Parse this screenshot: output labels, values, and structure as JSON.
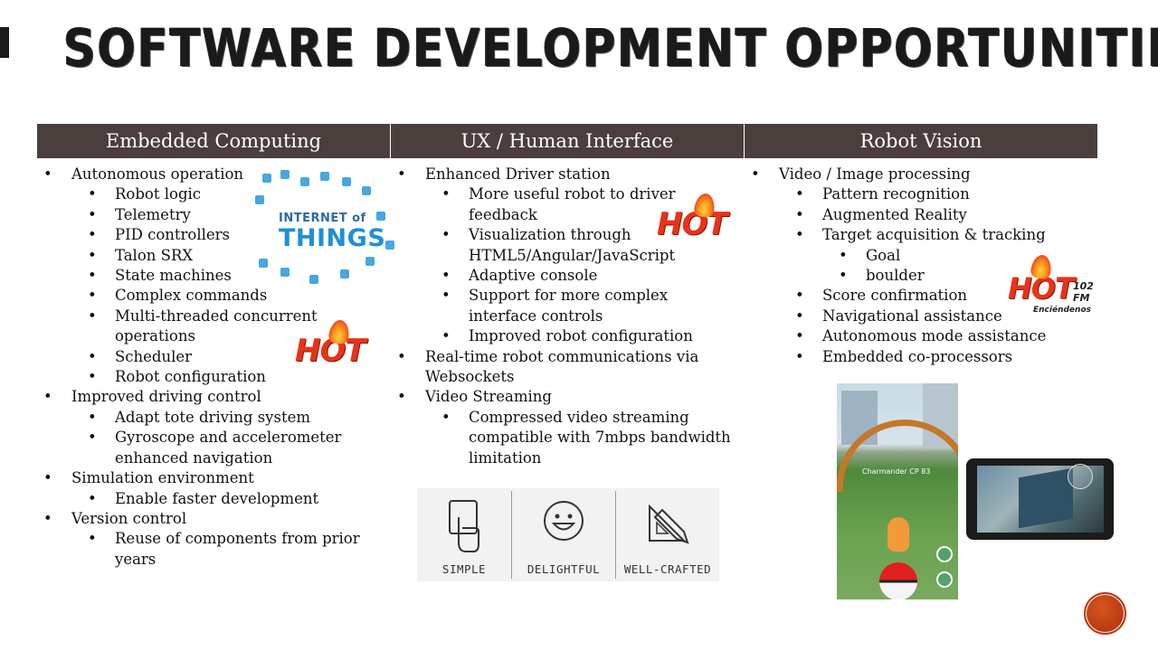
{
  "slide": {
    "title": "SOFTWARE DEVELOPMENT OPPORTUNITIES"
  },
  "columns": [
    {
      "header": "Embedded Computing",
      "items": [
        {
          "level": 1,
          "text": "Autonomous operation"
        },
        {
          "level": 2,
          "text": "Robot logic"
        },
        {
          "level": 2,
          "text": "Telemetry"
        },
        {
          "level": 2,
          "text": "PID controllers"
        },
        {
          "level": 2,
          "text": "Talon SRX"
        },
        {
          "level": 2,
          "text": "State machines"
        },
        {
          "level": 2,
          "text": "Complex commands"
        },
        {
          "level": 2,
          "text": "Multi-threaded concurrent operations"
        },
        {
          "level": 2,
          "text": "Scheduler"
        },
        {
          "level": 2,
          "text": "Robot configuration"
        },
        {
          "level": 1,
          "text": "Improved driving control"
        },
        {
          "level": 2,
          "text": "Adapt tote driving system"
        },
        {
          "level": 2,
          "text": "Gyroscope and accelerometer enhanced navigation"
        },
        {
          "level": 1,
          "text": "Simulation environment"
        },
        {
          "level": 2,
          "text": "Enable faster development"
        },
        {
          "level": 1,
          "text": "Version control"
        },
        {
          "level": 2,
          "text": "Reuse of components from prior years"
        }
      ]
    },
    {
      "header": "UX / Human Interface",
      "items": [
        {
          "level": 1,
          "text": "Enhanced Driver station"
        },
        {
          "level": 2,
          "text": "More useful robot to driver feedback"
        },
        {
          "level": 2,
          "text": "Visualization through HTML5/Angular/JavaScript"
        },
        {
          "level": 2,
          "text": "Adaptive console"
        },
        {
          "level": 2,
          "text": "Support for more complex interface controls"
        },
        {
          "level": 2,
          "text": "Improved robot configuration"
        },
        {
          "level": 1,
          "text": "Real-time robot communications via Websockets"
        },
        {
          "level": 1,
          "text": "Video Streaming"
        },
        {
          "level": 2,
          "text": "Compressed video streaming compatible with 7mbps bandwidth limitation"
        }
      ]
    },
    {
      "header": "Robot Vision",
      "items": [
        {
          "level": 1,
          "text": "Video / Image processing"
        },
        {
          "level": 2,
          "text": "Pattern recognition"
        },
        {
          "level": 2,
          "text": "Augmented Reality"
        },
        {
          "level": 2,
          "text": "Target acquisition & tracking"
        },
        {
          "level": 3,
          "text": "Goal"
        },
        {
          "level": 3,
          "text": "boulder"
        },
        {
          "level": 2,
          "text": "Score confirmation"
        },
        {
          "level": 2,
          "text": "Navigational assistance"
        },
        {
          "level": 2,
          "text": "Autonomous mode assistance"
        },
        {
          "level": 2,
          "text": "Embedded co-processors"
        }
      ]
    }
  ],
  "badges": {
    "hot": "HOT",
    "hot_fm_number": "102",
    "hot_fm_suffix": "FM",
    "hot_fm_tagline": "Enciéndenos"
  },
  "iot_graphic": {
    "line1": "INTERNET of",
    "line2": "THINGS"
  },
  "ux_graphic": {
    "labels": [
      "SIMPLE",
      "DELIGHTFUL",
      "WELL-CRAFTED"
    ]
  },
  "ar_photo": {
    "label": "Charmander  CP 83"
  },
  "colors": {
    "header_bg": "#4a3f3d",
    "hot_red": "#e8321a",
    "nav_button": "#b83a12"
  }
}
